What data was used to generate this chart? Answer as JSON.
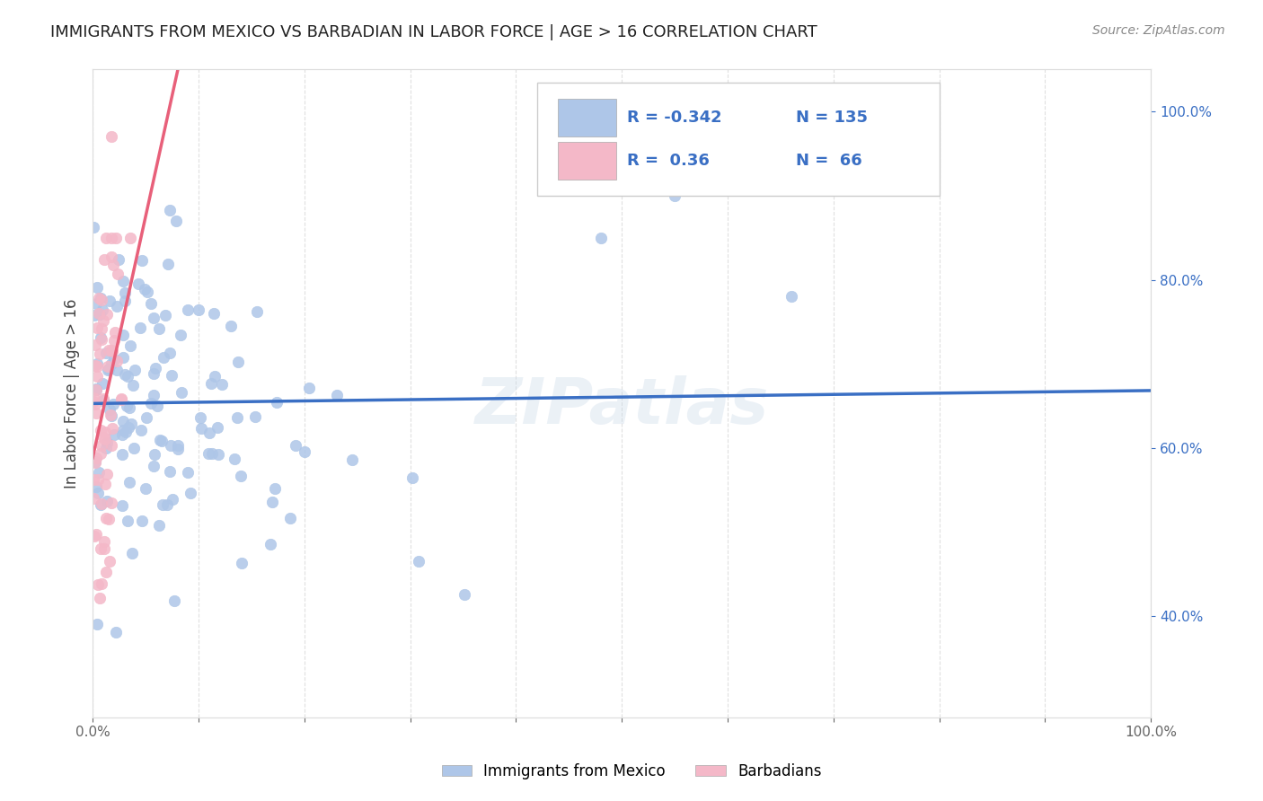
{
  "title": "IMMIGRANTS FROM MEXICO VS BARBADIAN IN LABOR FORCE | AGE > 16 CORRELATION CHART",
  "source": "Source: ZipAtlas.com",
  "ylabel": "In Labor Force | Age > 16",
  "legend_label1": "Immigrants from Mexico",
  "legend_label2": "Barbadians",
  "R_mexico": -0.342,
  "N_mexico": 135,
  "R_barbadian": 0.36,
  "N_barbadian": 66,
  "color_mexico": "#aec6e8",
  "color_barbadian": "#f4b8c8",
  "color_mexico_line": "#3a6fc4",
  "color_barbadian_line": "#e8607a",
  "color_text_blue": "#3a6fc4",
  "watermark_text": "ZIPatlas",
  "background_color": "#ffffff",
  "grid_color": "#dddddd",
  "xlim": [
    0.0,
    1.0
  ],
  "ylim": [
    0.28,
    1.05
  ]
}
